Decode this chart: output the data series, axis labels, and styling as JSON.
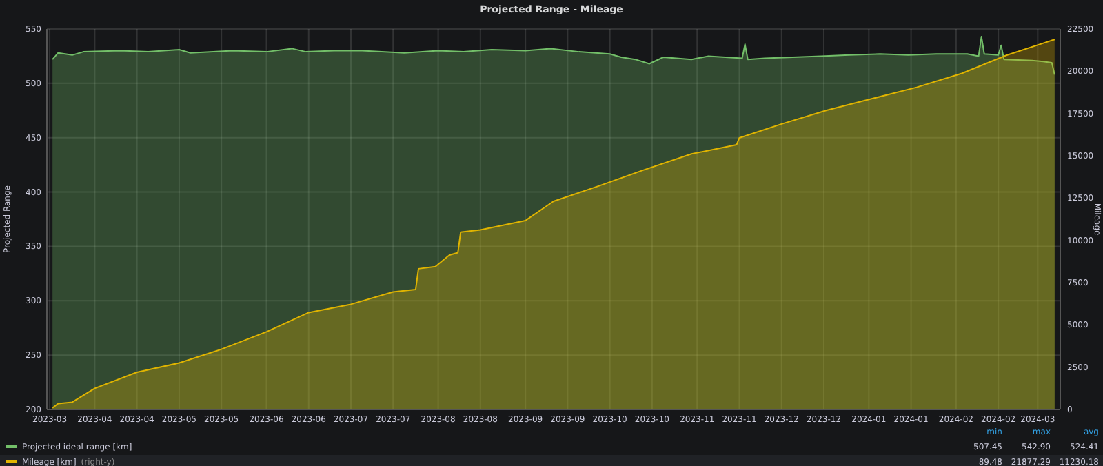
{
  "chart_data": {
    "type": "area",
    "title": "Projected Range - Mileage",
    "ylabel": "Projected Range",
    "y2label": "Mileage",
    "xlim": [
      "2023-03-15",
      "2024-03-09"
    ],
    "xticks": [
      {
        "value": "2023-03-16",
        "label": "2023-03"
      },
      {
        "value": "2023-04-01",
        "label": "2023-04"
      },
      {
        "value": "2023-04-16",
        "label": "2023-04"
      },
      {
        "value": "2023-05-01",
        "label": "2023-05"
      },
      {
        "value": "2023-05-16",
        "label": "2023-05"
      },
      {
        "value": "2023-06-01",
        "label": "2023-06"
      },
      {
        "value": "2023-06-16",
        "label": "2023-06"
      },
      {
        "value": "2023-07-01",
        "label": "2023-07"
      },
      {
        "value": "2023-07-16",
        "label": "2023-07"
      },
      {
        "value": "2023-08-01",
        "label": "2023-08"
      },
      {
        "value": "2023-08-16",
        "label": "2023-08"
      },
      {
        "value": "2023-09-01",
        "label": "2023-09"
      },
      {
        "value": "2023-09-16",
        "label": "2023-09"
      },
      {
        "value": "2023-10-01",
        "label": "2023-10"
      },
      {
        "value": "2023-10-16",
        "label": "2023-10"
      },
      {
        "value": "2023-11-01",
        "label": "2023-11"
      },
      {
        "value": "2023-11-16",
        "label": "2023-11"
      },
      {
        "value": "2023-12-01",
        "label": "2023-12"
      },
      {
        "value": "2023-12-16",
        "label": "2023-12"
      },
      {
        "value": "2024-01-01",
        "label": "2024-01"
      },
      {
        "value": "2024-01-16",
        "label": "2024-01"
      },
      {
        "value": "2024-02-01",
        "label": "2024-02"
      },
      {
        "value": "2024-02-16",
        "label": "2024-02"
      },
      {
        "value": "2024-03-01",
        "label": "2024-03"
      }
    ],
    "ylim": [
      200,
      550
    ],
    "yticks": [
      200,
      250,
      300,
      350,
      400,
      450,
      500,
      550
    ],
    "y2lim": [
      0,
      22500
    ],
    "y2ticks": [
      0,
      2500,
      5000,
      7500,
      10000,
      12500,
      15000,
      17500,
      20000,
      22500
    ],
    "grid": true,
    "legend": "bottom",
    "series": [
      {
        "name": "Projected ideal range [km]",
        "color": "#73bf69",
        "x": [
          "2023-03-17",
          "2023-03-19",
          "2023-03-24",
          "2023-03-28",
          "2023-04-10",
          "2023-04-20",
          "2023-05-01",
          "2023-05-05",
          "2023-05-20",
          "2023-06-01",
          "2023-06-10",
          "2023-06-15",
          "2023-06-25",
          "2023-07-05",
          "2023-07-20",
          "2023-08-01",
          "2023-08-10",
          "2023-08-20",
          "2023-09-01",
          "2023-09-10",
          "2023-09-20",
          "2023-10-01",
          "2023-10-05",
          "2023-10-10",
          "2023-10-15",
          "2023-10-20",
          "2023-10-30",
          "2023-11-05",
          "2023-11-17",
          "2023-11-18",
          "2023-11-19",
          "2023-11-25",
          "2023-12-05",
          "2023-12-15",
          "2023-12-25",
          "2024-01-05",
          "2024-01-15",
          "2024-01-25",
          "2024-02-05",
          "2024-02-09",
          "2024-02-10",
          "2024-02-11",
          "2024-02-16",
          "2024-02-17",
          "2024-02-18",
          "2024-02-28",
          "2024-03-03",
          "2024-03-06",
          "2024-03-07"
        ],
        "values": [
          522,
          528,
          526,
          529,
          530,
          529,
          531,
          528,
          530,
          529,
          532,
          529,
          530,
          530,
          528,
          530,
          529,
          531,
          530,
          532,
          529,
          527,
          524,
          522,
          518,
          524,
          522,
          525,
          523,
          536,
          522,
          523,
          524,
          525,
          526,
          527,
          526,
          527,
          527,
          525,
          543,
          527,
          526,
          535,
          522,
          521,
          520,
          519,
          508
        ]
      },
      {
        "name": "Mileage [km]",
        "color": "#e0b400",
        "axis": "y2",
        "x": [
          "2023-03-17",
          "2023-03-19",
          "2023-03-24",
          "2023-04-01",
          "2023-04-16",
          "2023-05-01",
          "2023-05-16",
          "2023-06-01",
          "2023-06-16",
          "2023-07-01",
          "2023-07-16",
          "2023-07-24",
          "2023-07-25",
          "2023-07-31",
          "2023-08-05",
          "2023-08-08",
          "2023-08-09",
          "2023-08-16",
          "2023-09-01",
          "2023-09-11",
          "2023-09-27",
          "2023-10-13",
          "2023-10-30",
          "2023-11-15",
          "2023-11-16",
          "2023-12-01",
          "2023-12-17",
          "2024-01-02",
          "2024-01-18",
          "2024-02-03",
          "2024-02-19",
          "2024-03-07"
        ],
        "values": [
          90,
          350,
          430,
          1250,
          2200,
          2750,
          3560,
          4590,
          5730,
          6220,
          6950,
          7090,
          8320,
          8450,
          9130,
          9270,
          10490,
          10620,
          11170,
          12310,
          13210,
          14160,
          15110,
          15650,
          16060,
          16880,
          17690,
          18370,
          19050,
          19870,
          20950,
          21880
        ]
      }
    ],
    "annotations": [
      "(right-y)",
      "min",
      "max",
      "avg",
      "507.45",
      "542.90",
      "524.41",
      "89.48",
      "21877.29",
      "11230.18"
    ]
  }
}
